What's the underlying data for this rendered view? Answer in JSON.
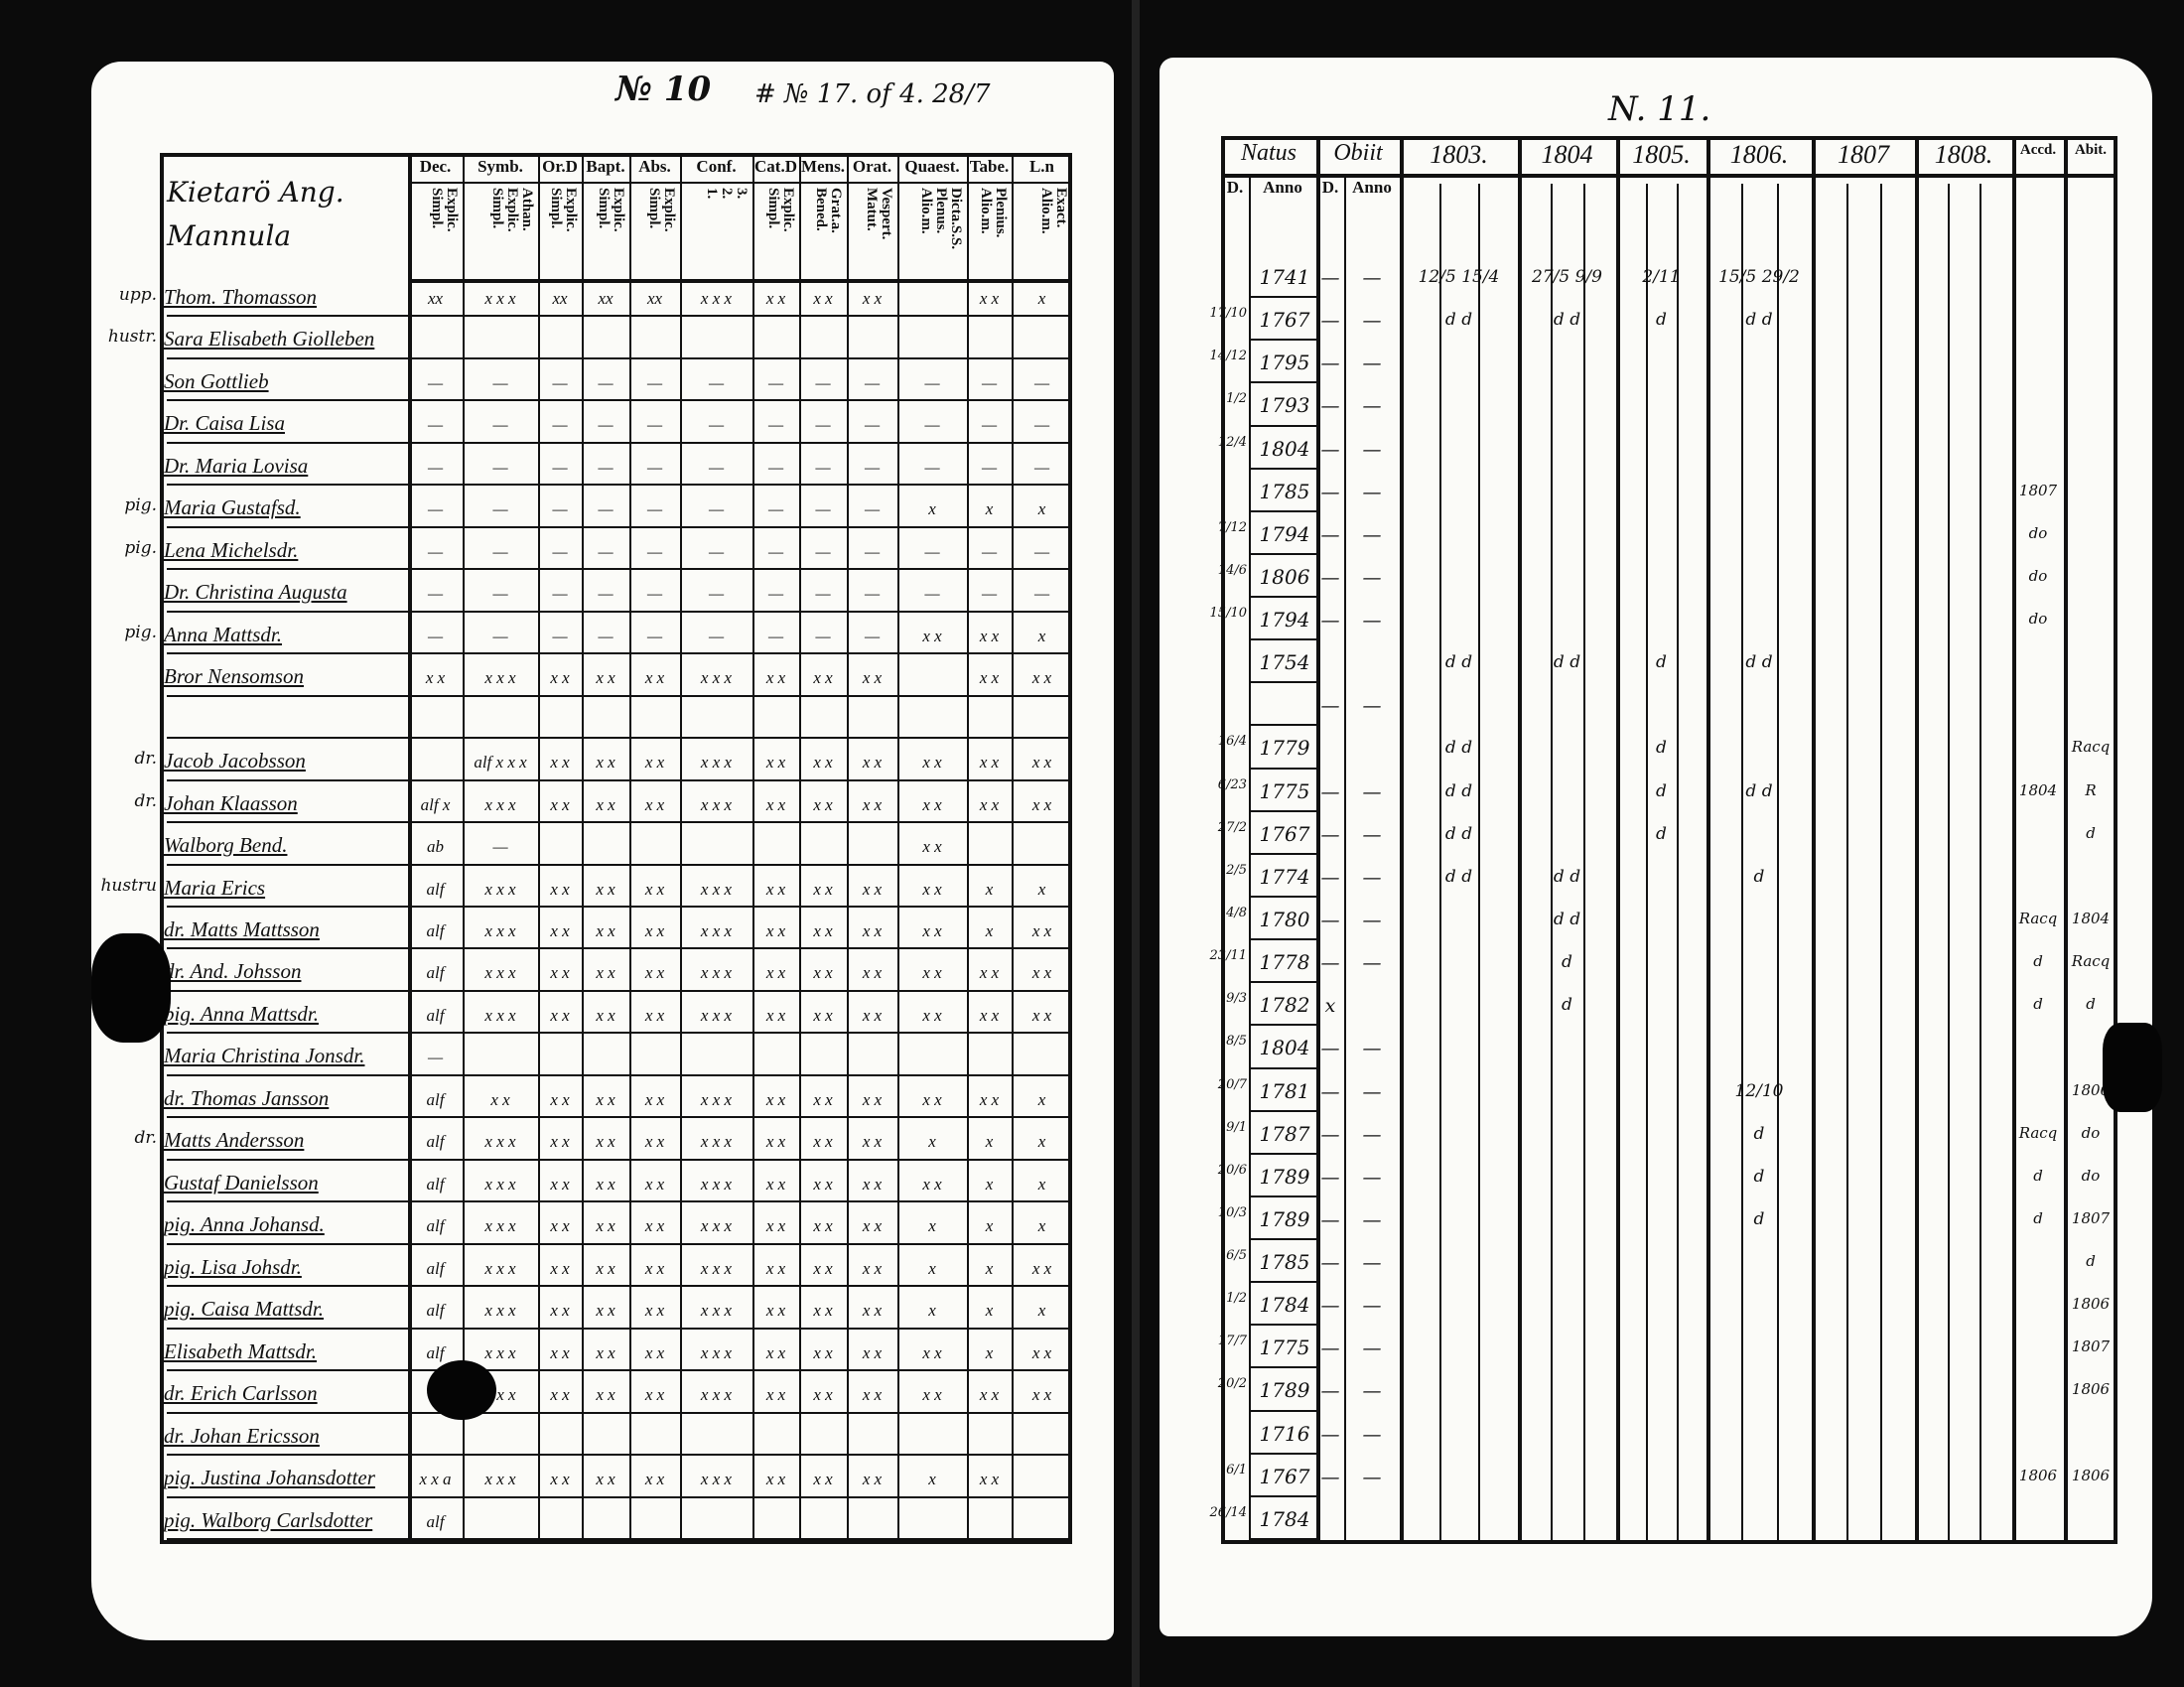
{
  "left_page": {
    "page_number": "№ 10",
    "page_note": "# № 17. of 4. 28/7",
    "header_name": "Kietarö Ang. Mannula",
    "columns": [
      {
        "label": "Dec.",
        "sub": "Explic.\nSimpl."
      },
      {
        "label": "Symb.",
        "sub": "Athan.\nExplic.\nSimpl."
      },
      {
        "label": "Or.D",
        "sub": "Explic.\nSimpl."
      },
      {
        "label": "Bapt.",
        "sub": "Explic.\nSimpl."
      },
      {
        "label": "Abs.",
        "sub": "Explic.\nSimpl."
      },
      {
        "label": "Conf.",
        "sub": "3.\n2.\n1."
      },
      {
        "label": "Cat.D",
        "sub": "Explic.\nSimpl."
      },
      {
        "label": "Mens.",
        "sub": "Grat.a.\nBened."
      },
      {
        "label": "Orat.",
        "sub": "Vespert.\nMatut."
      },
      {
        "label": "Quaest.",
        "sub": "Dicta.S.S.\nPlenus.\nAlio.m."
      },
      {
        "label": "Tabe.",
        "sub": "Plenius.\nAlio.m."
      },
      {
        "label": "L.n",
        "sub": "Exact.\nAlio.m."
      }
    ],
    "rows": [
      {
        "prefix": "upp.",
        "name": "Thom. Thomasson",
        "marks": [
          "xx",
          "x x x",
          "xx",
          "xx",
          "xx",
          "x x x",
          "x x",
          "x x",
          "x x",
          "",
          "x x",
          "x"
        ]
      },
      {
        "prefix": "hustr.",
        "name": "Sara Elisabeth Giolleben",
        "marks": [
          "",
          "",
          "",
          "",
          "",
          "",
          "",
          "",
          "",
          "",
          "",
          ""
        ]
      },
      {
        "prefix": "",
        "name": "Son Gottlieb",
        "marks": [
          "—",
          "—",
          "—",
          "—",
          "—",
          "—",
          "—",
          "—",
          "—",
          "—",
          "—",
          "—"
        ]
      },
      {
        "prefix": "",
        "name": "Dr. Caisa Lisa",
        "marks": [
          "—",
          "—",
          "—",
          "—",
          "—",
          "—",
          "—",
          "—",
          "—",
          "—",
          "—",
          "—"
        ]
      },
      {
        "prefix": "",
        "name": "Dr. Maria Lovisa",
        "marks": [
          "—",
          "—",
          "—",
          "—",
          "—",
          "—",
          "—",
          "—",
          "—",
          "—",
          "—",
          "—"
        ]
      },
      {
        "prefix": "pig.",
        "name": "Maria Gustafsd.",
        "marks": [
          "—",
          "—",
          "—",
          "—",
          "—",
          "—",
          "—",
          "—",
          "—",
          "x",
          "x",
          "x"
        ]
      },
      {
        "prefix": "pig.",
        "name": "Lena Michelsdr.",
        "marks": [
          "—",
          "—",
          "—",
          "—",
          "—",
          "—",
          "—",
          "—",
          "—",
          "—",
          "—",
          "—"
        ]
      },
      {
        "prefix": "",
        "name": "Dr. Christina Augusta",
        "marks": [
          "—",
          "—",
          "—",
          "—",
          "—",
          "—",
          "—",
          "—",
          "—",
          "—",
          "—",
          "—"
        ]
      },
      {
        "prefix": "pig.",
        "name": "Anna Mattsdr.",
        "marks": [
          "—",
          "—",
          "—",
          "—",
          "—",
          "—",
          "—",
          "—",
          "—",
          "x x",
          "x x",
          "x"
        ]
      },
      {
        "prefix": "",
        "name": "Bror Nensomson",
        "marks": [
          "x x",
          "x x x",
          "x x",
          "x x",
          "x x",
          "x x x",
          "x x",
          "x x",
          "x x",
          "",
          "x x",
          "x x"
        ]
      },
      {
        "prefix": "",
        "name": "",
        "marks": [
          "",
          "",
          "",
          "",
          "",
          "",
          "",
          "",
          "",
          "",
          "",
          ""
        ]
      },
      {
        "prefix": "dr.",
        "name": "Jacob Jacobsson",
        "marks": [
          "",
          "alf x x x",
          "x x",
          "x x",
          "x x",
          "x x x",
          "x x",
          "x x",
          "x x",
          "x x",
          "x x",
          "x x"
        ]
      },
      {
        "prefix": "dr.",
        "name": "Johan Klaasson",
        "marks": [
          "alf x",
          "x x x",
          "x x",
          "x x",
          "x x",
          "x x x",
          "x x",
          "x x",
          "x x",
          "x x",
          "x x",
          "x x"
        ]
      },
      {
        "prefix": "",
        "name": "Walborg Bend.",
        "marks": [
          "ab",
          "—",
          "",
          "",
          "",
          "",
          "",
          "",
          "",
          "x x",
          "",
          ""
        ]
      },
      {
        "prefix": "hustru",
        "name": "Maria Erics",
        "marks": [
          "alf",
          "x x x",
          "x x",
          "x x",
          "x x",
          "x x x",
          "x x",
          "x x",
          "x x",
          "x x",
          "x",
          "x"
        ]
      },
      {
        "prefix": "",
        "name": "dr. Matts Mattsson",
        "marks": [
          "alf",
          "x x x",
          "x x",
          "x x",
          "x x",
          "x x x",
          "x x",
          "x x",
          "x x",
          "x x",
          "x",
          "x x"
        ]
      },
      {
        "prefix": "",
        "name": "dr. And. Johsson",
        "marks": [
          "alf",
          "x x x",
          "x x",
          "x x",
          "x x",
          "x x x",
          "x x",
          "x x",
          "x x",
          "x x",
          "x x",
          "x x"
        ]
      },
      {
        "prefix": "",
        "name": "pig. Anna Mattsdr.",
        "marks": [
          "alf",
          "x x x",
          "x x",
          "x x",
          "x x",
          "x x x",
          "x x",
          "x x",
          "x x",
          "x x",
          "x x",
          "x x"
        ]
      },
      {
        "prefix": "",
        "name": "Maria Christina Jonsdr.",
        "marks": [
          "—",
          "",
          "",
          "",
          "",
          "",
          "",
          "",
          "",
          "",
          "",
          ""
        ]
      },
      {
        "prefix": "",
        "name": "dr. Thomas Jansson",
        "marks": [
          "alf",
          "x x",
          "x x",
          "x x",
          "x x",
          "x x x",
          "x x",
          "x x",
          "x x",
          "x x",
          "x x",
          "x"
        ]
      },
      {
        "prefix": "dr.",
        "name": "Matts Andersson",
        "marks": [
          "alf",
          "x x x",
          "x x",
          "x x",
          "x x",
          "x x x",
          "x x",
          "x x",
          "x x",
          "x",
          "x",
          "x"
        ]
      },
      {
        "prefix": "",
        "name": "Gustaf Danielsson",
        "marks": [
          "alf",
          "x x x",
          "x x",
          "x x",
          "x x",
          "x x x",
          "x x",
          "x x",
          "x x",
          "x x",
          "x",
          "x"
        ]
      },
      {
        "prefix": "",
        "name": "pig. Anna Johansd.",
        "marks": [
          "alf",
          "x x x",
          "x x",
          "x x",
          "x x",
          "x x x",
          "x x",
          "x x",
          "x x",
          "x",
          "x",
          "x"
        ]
      },
      {
        "prefix": "",
        "name": "pig. Lisa Johsdr.",
        "marks": [
          "alf",
          "x x x",
          "x x",
          "x x",
          "x x",
          "x x x",
          "x x",
          "x x",
          "x x",
          "x",
          "x",
          "x x"
        ]
      },
      {
        "prefix": "",
        "name": "pig. Caisa Mattsdr.",
        "marks": [
          "alf",
          "x x x",
          "x x",
          "x x",
          "x x",
          "x x x",
          "x x",
          "x x",
          "x x",
          "x",
          "x",
          "x"
        ]
      },
      {
        "prefix": "",
        "name": "Elisabeth Mattsdr.",
        "marks": [
          "alf",
          "x x x",
          "x x",
          "x x",
          "x x",
          "x x x",
          "x x",
          "x x",
          "x x",
          "x x",
          "x",
          "x x"
        ]
      },
      {
        "prefix": "",
        "name": "dr. Erich Carlsson",
        "marks": [
          "",
          "x x x",
          "x x",
          "x x",
          "x x",
          "x x x",
          "x x",
          "x x",
          "x x",
          "x x",
          "x x",
          "x x"
        ]
      },
      {
        "prefix": "",
        "name": "dr. Johan Ericsson",
        "marks": [
          "",
          "",
          "",
          "",
          "",
          "",
          "",
          "",
          "",
          "",
          "",
          ""
        ]
      },
      {
        "prefix": "",
        "name": "pig. Justina Johansdotter",
        "marks": [
          "x x a",
          "x x x",
          "x x",
          "x x",
          "x x",
          "x x x",
          "x x",
          "x x",
          "x x",
          "x",
          "x x",
          ""
        ]
      },
      {
        "prefix": "",
        "name": "pig. Walborg Carlsdotter",
        "marks": [
          "alf",
          "",
          "",
          "",
          "",
          "",
          "",
          "",
          "",
          "",
          "",
          ""
        ]
      }
    ]
  },
  "right_page": {
    "page_number": "N. 11.",
    "natus_label": "Natus",
    "obiit_label": "Obiit",
    "d_label": "D.",
    "anno_label": "Anno",
    "years": [
      "1803.",
      "1804",
      "1805.",
      "1806.",
      "1807",
      "1808."
    ],
    "accd_label": "Accd.",
    "abit_label": "Abit.",
    "rows": [
      {
        "d": "",
        "anno": "1741",
        "obiit_d": "—",
        "obiit_anno": "—",
        "y1803": "12/5 15/4",
        "y1804": "27/5 9/9",
        "y1805": "2/11",
        "y1806": "15/5 29/2",
        "accd": "",
        "abit": ""
      },
      {
        "d": "17/10",
        "anno": "1767",
        "obiit_d": "—",
        "obiit_anno": "—",
        "y1803": "d d",
        "y1804": "d d",
        "y1805": "d",
        "y1806": "d d",
        "accd": "",
        "abit": ""
      },
      {
        "d": "14/12",
        "anno": "1795",
        "obiit_d": "—",
        "obiit_anno": "—",
        "y1803": "",
        "y1804": "",
        "y1805": "",
        "y1806": "",
        "accd": "",
        "abit": ""
      },
      {
        "d": "1/2",
        "anno": "1793",
        "obiit_d": "—",
        "obiit_anno": "—",
        "y1803": "",
        "y1804": "",
        "y1805": "",
        "y1806": "",
        "accd": "",
        "abit": ""
      },
      {
        "d": "12/4",
        "anno": "1804",
        "obiit_d": "—",
        "obiit_anno": "—",
        "y1803": "",
        "y1804": "",
        "y1805": "",
        "y1806": "",
        "accd": "",
        "abit": ""
      },
      {
        "d": "",
        "anno": "1785",
        "obiit_d": "—",
        "obiit_anno": "—",
        "y1803": "",
        "y1804": "",
        "y1805": "",
        "y1806": "",
        "accd": "1807",
        "abit": ""
      },
      {
        "d": "7/12",
        "anno": "1794",
        "obiit_d": "—",
        "obiit_anno": "—",
        "y1803": "",
        "y1804": "",
        "y1805": "",
        "y1806": "",
        "accd": "do",
        "abit": ""
      },
      {
        "d": "14/6",
        "anno": "1806",
        "obiit_d": "—",
        "obiit_anno": "—",
        "y1803": "",
        "y1804": "",
        "y1805": "",
        "y1806": "",
        "accd": "do",
        "abit": ""
      },
      {
        "d": "15/10",
        "anno": "1794",
        "obiit_d": "—",
        "obiit_anno": "—",
        "y1803": "",
        "y1804": "",
        "y1805": "",
        "y1806": "",
        "accd": "do",
        "abit": ""
      },
      {
        "d": "",
        "anno": "1754",
        "obiit_d": "",
        "obiit_anno": "",
        "y1803": "d d",
        "y1804": "d d",
        "y1805": "d",
        "y1806": "d d",
        "accd": "",
        "abit": ""
      },
      {
        "d": "",
        "anno": "",
        "obiit_d": "—",
        "obiit_anno": "—",
        "y1803": "",
        "y1804": "",
        "y1805": "",
        "y1806": "",
        "accd": "",
        "abit": ""
      },
      {
        "d": "16/4",
        "anno": "1779",
        "obiit_d": "",
        "obiit_anno": "",
        "y1803": "d d",
        "y1804": "",
        "y1805": "d",
        "y1806": "",
        "accd": "",
        "abit": "Racq"
      },
      {
        "d": "6/23",
        "anno": "1775",
        "obiit_d": "—",
        "obiit_anno": "—",
        "y1803": "d d",
        "y1804": "",
        "y1805": "d",
        "y1806": "d d",
        "accd": "1804",
        "abit": "R"
      },
      {
        "d": "27/2",
        "anno": "1767",
        "obiit_d": "—",
        "obiit_anno": "—",
        "y1803": "d d",
        "y1804": "",
        "y1805": "d",
        "y1806": "",
        "accd": "",
        "abit": "d"
      },
      {
        "d": "2/5",
        "anno": "1774",
        "obiit_d": "—",
        "obiit_anno": "—",
        "y1803": "d d",
        "y1804": "d d",
        "y1805": "",
        "y1806": "d",
        "accd": "",
        "abit": ""
      },
      {
        "d": "4/8",
        "anno": "1780",
        "obiit_d": "—",
        "obiit_anno": "—",
        "y1803": "",
        "y1804": "d d",
        "y1805": "",
        "y1806": "",
        "accd": "Racq",
        "abit": "1804"
      },
      {
        "d": "23/11",
        "anno": "1778",
        "obiit_d": "—",
        "obiit_anno": "—",
        "y1803": "",
        "y1804": "d",
        "y1805": "",
        "y1806": "",
        "accd": "d",
        "abit": "Racq"
      },
      {
        "d": "9/3",
        "anno": "1782",
        "obiit_d": "x",
        "obiit_anno": "",
        "y1803": "",
        "y1804": "d",
        "y1805": "",
        "y1806": "",
        "accd": "d",
        "abit": "d"
      },
      {
        "d": "8/5",
        "anno": "1804",
        "obiit_d": "—",
        "obiit_anno": "—",
        "y1803": "",
        "y1804": "",
        "y1805": "",
        "y1806": "",
        "accd": "",
        "abit": ""
      },
      {
        "d": "20/7",
        "anno": "1781",
        "obiit_d": "—",
        "obiit_anno": "—",
        "y1803": "",
        "y1804": "",
        "y1805": "",
        "y1806": "12/10",
        "accd": "",
        "abit": "1806"
      },
      {
        "d": "9/1",
        "anno": "1787",
        "obiit_d": "—",
        "obiit_anno": "—",
        "y1803": "",
        "y1804": "",
        "y1805": "",
        "y1806": "d",
        "accd": "Racq",
        "abit": "do"
      },
      {
        "d": "20/6",
        "anno": "1789",
        "obiit_d": "—",
        "obiit_anno": "—",
        "y1803": "",
        "y1804": "",
        "y1805": "",
        "y1806": "d",
        "accd": "d",
        "abit": "do"
      },
      {
        "d": "10/3",
        "anno": "1789",
        "obiit_d": "—",
        "obiit_anno": "—",
        "y1803": "",
        "y1804": "",
        "y1805": "",
        "y1806": "d",
        "accd": "d",
        "abit": "1807"
      },
      {
        "d": "6/5",
        "anno": "1785",
        "obiit_d": "—",
        "obiit_anno": "—",
        "y1803": "",
        "y1804": "",
        "y1805": "",
        "y1806": "",
        "accd": "",
        "abit": "d"
      },
      {
        "d": "1/2",
        "anno": "1784",
        "obiit_d": "—",
        "obiit_anno": "—",
        "y1803": "",
        "y1804": "",
        "y1805": "",
        "y1806": "",
        "accd": "",
        "abit": "1806"
      },
      {
        "d": "17/7",
        "anno": "1775",
        "obiit_d": "—",
        "obiit_anno": "—",
        "y1803": "",
        "y1804": "",
        "y1805": "",
        "y1806": "",
        "accd": "",
        "abit": "1807"
      },
      {
        "d": "20/2",
        "anno": "1789",
        "obiit_d": "—",
        "obiit_anno": "—",
        "y1803": "",
        "y1804": "",
        "y1805": "",
        "y1806": "",
        "accd": "",
        "abit": "1806"
      },
      {
        "d": "",
        "anno": "1716",
        "obiit_d": "—",
        "obiit_anno": "—",
        "y1803": "",
        "y1804": "",
        "y1805": "",
        "y1806": "",
        "accd": "",
        "abit": ""
      },
      {
        "d": "6/1",
        "anno": "1767",
        "obiit_d": "—",
        "obiit_anno": "—",
        "y1803": "",
        "y1804": "",
        "y1805": "",
        "y1806": "",
        "accd": "1806",
        "abit": "1806"
      },
      {
        "d": "26/14",
        "anno": "1784",
        "obiit_d": "",
        "obiit_anno": "",
        "y1803": "",
        "y1804": "",
        "y1805": "",
        "y1806": "",
        "accd": "",
        "abit": ""
      }
    ]
  }
}
